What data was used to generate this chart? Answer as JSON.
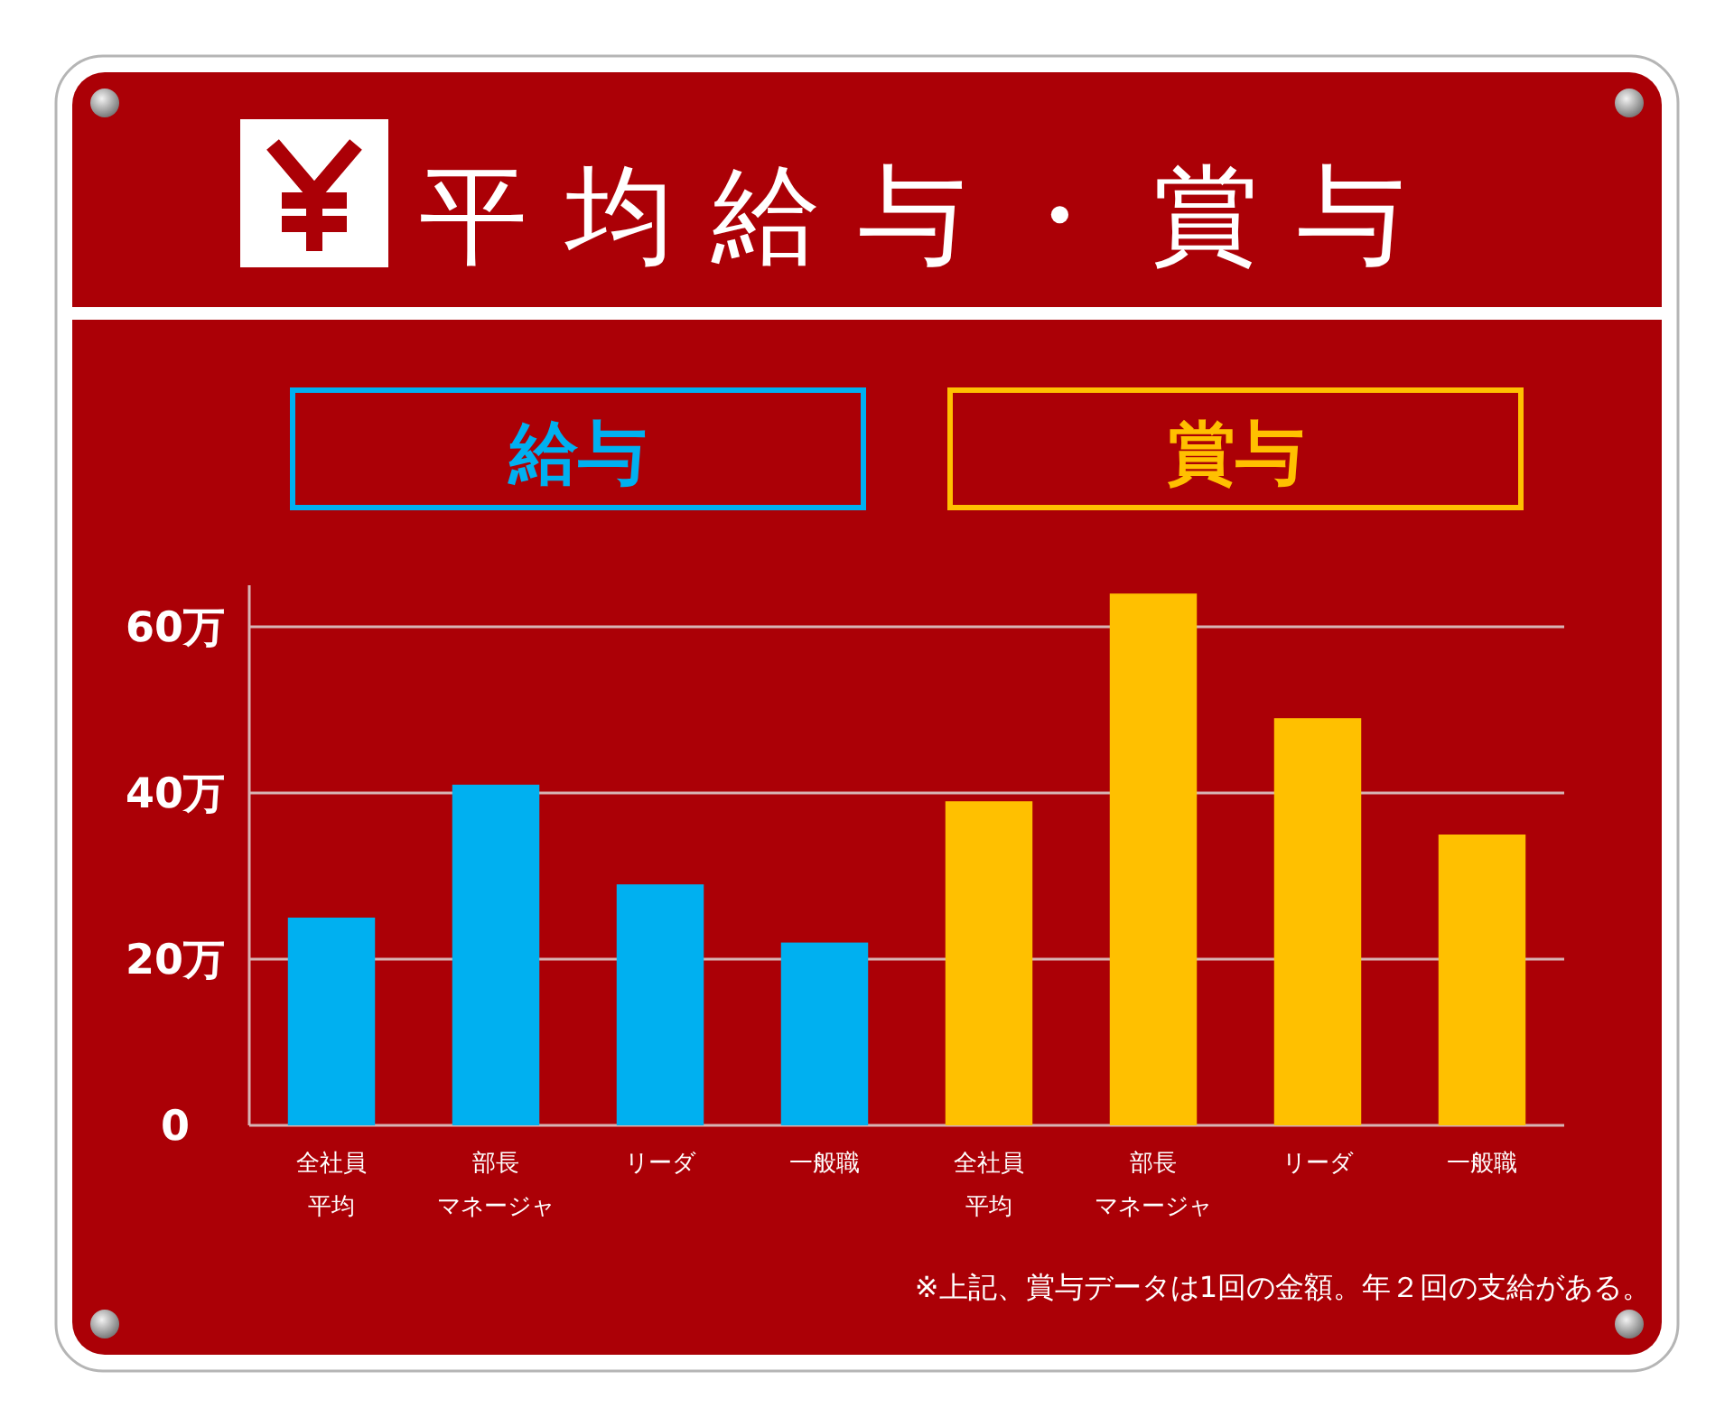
{
  "chart_data": {
    "type": "bar",
    "title": "平均給与・賞与",
    "categories": [
      "全社員平均",
      "部長マネージャ",
      "リーダ",
      "一般職",
      "全社員平均",
      "部長マネージャ",
      "リーダ",
      "一般職"
    ],
    "series": [
      {
        "name": "給与",
        "color": "#00b0f0",
        "values": [
          25,
          41,
          29,
          22,
          null,
          null,
          null,
          null
        ]
      },
      {
        "name": "賞与",
        "color": "#ffc000",
        "values": [
          null,
          null,
          null,
          null,
          39,
          64,
          49,
          35
        ]
      }
    ],
    "ylim": [
      0,
      65
    ],
    "yticks": [
      0,
      {
        "value": 20,
        "label": "20万"
      },
      {
        "value": 40,
        "label": "40万"
      },
      {
        "value": 60,
        "label": "60万"
      }
    ],
    "grid": "y",
    "legend": "top",
    "annotations": [
      "※上記、賞与データは1回の金額。年２回の支給がある。"
    ]
  }
}
